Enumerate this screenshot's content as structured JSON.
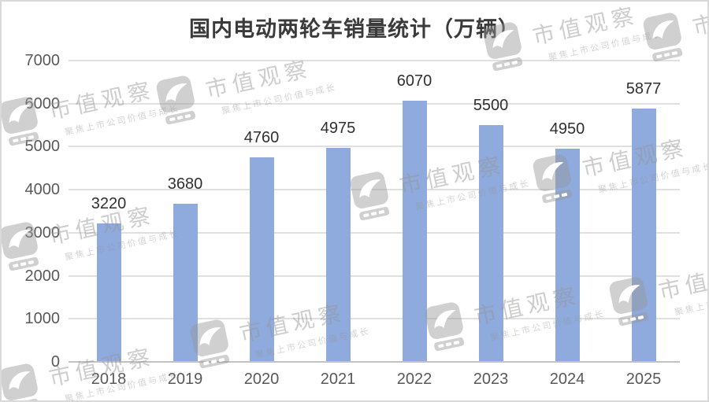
{
  "frame": {
    "background": "#ffffff",
    "border_color": "#d9d9d9"
  },
  "chart_data": {
    "type": "bar",
    "title": "国内电动两轮车销量统计（万辆）",
    "categories": [
      "2018",
      "2019",
      "2020",
      "2021",
      "2022",
      "2023",
      "2024",
      "2025"
    ],
    "values": [
      3220,
      3680,
      4760,
      4975,
      6070,
      5500,
      4950,
      5877
    ],
    "y_ticks": [
      0,
      1000,
      2000,
      3000,
      4000,
      5000,
      6000,
      7000
    ],
    "ylim": [
      0,
      7000
    ],
    "grid": true,
    "legend_position": "none",
    "xlabel": "",
    "ylabel": "",
    "colors": {
      "bar": "#8faadc",
      "title_text": "#3a3a3a",
      "axis_text": "#595959",
      "value_text": "#303030",
      "gridline": "#e0e0e0",
      "baseline": "#c2c2c2"
    }
  },
  "watermark": {
    "brand": "市值观察",
    "tagline": "聚焦上市公司价值与成长"
  }
}
